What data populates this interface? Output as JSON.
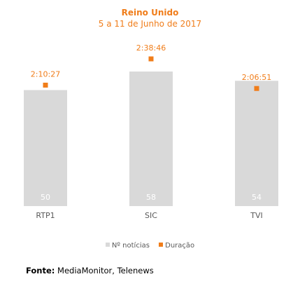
{
  "chart_data": {
    "type": "bar",
    "title": "Reino Unido",
    "subtitle": "5 a 11 de Junho de 2017",
    "categories": [
      "RTP1",
      "SIC",
      "TVI"
    ],
    "series": [
      {
        "name": "Nº notícias",
        "type": "bar",
        "values": [
          50,
          58,
          54
        ],
        "color": "#d9d9d9"
      },
      {
        "name": "Duração",
        "type": "scatter",
        "values": [
          "2:10:27",
          "2:38:46",
          "2:06:51"
        ],
        "values_seconds": [
          7827,
          9526,
          7611
        ],
        "color": "#f07d1a"
      }
    ],
    "legend_position": "bottom",
    "grid": false
  },
  "source": {
    "label": "Fonte:",
    "text": "MediaMonitor, Telenews"
  },
  "colors": {
    "accent": "#f07d1a",
    "bar": "#d9d9d9",
    "text": "#595959"
  }
}
